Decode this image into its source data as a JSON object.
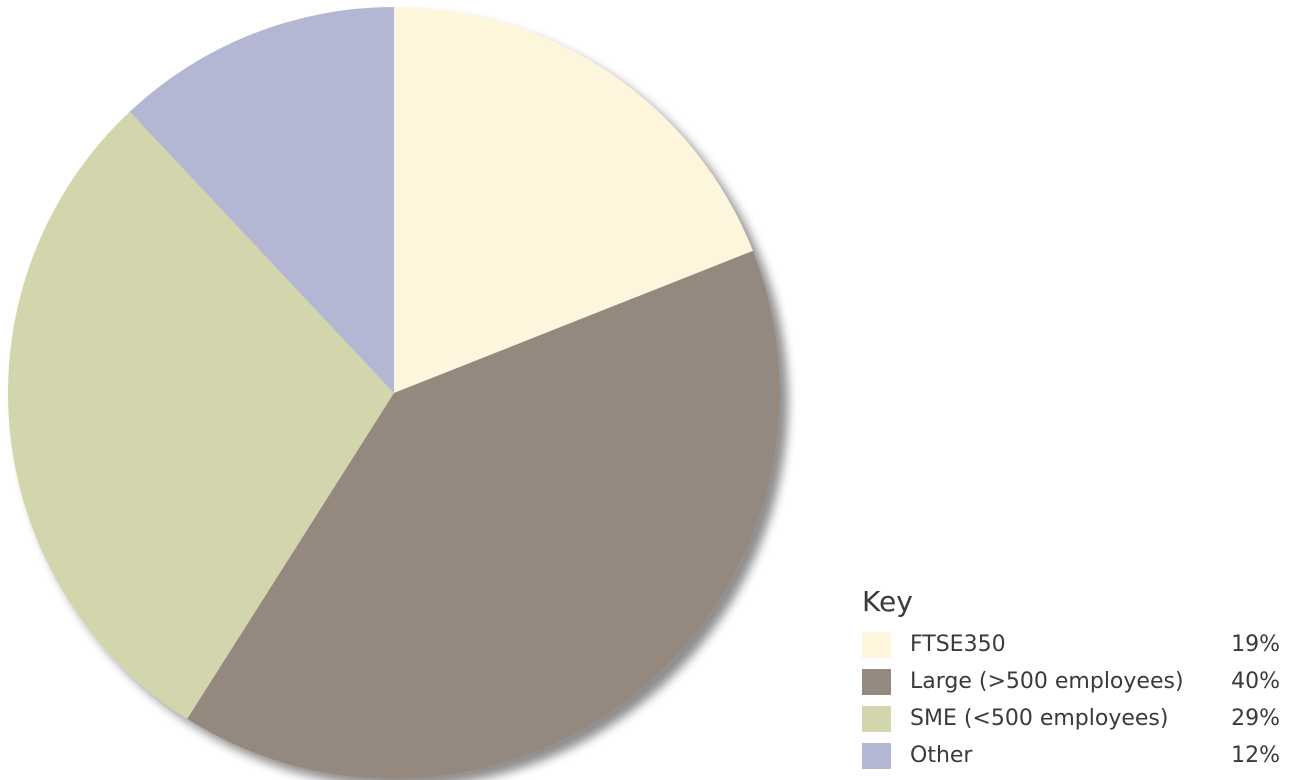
{
  "chart_data": {
    "type": "pie",
    "legend_title": "Key",
    "legend_position": "bottom-right",
    "slices": [
      {
        "label": "FTSE350",
        "value": 19,
        "display": "19%",
        "color": "#fdf6dc"
      },
      {
        "label": "Large (>500 employees)",
        "value": 40,
        "display": "40%",
        "color": "#95897f"
      },
      {
        "label": "SME (<500 employees)",
        "value": 29,
        "display": "29%",
        "color": "#d3d6ad"
      },
      {
        "label": "Other",
        "value": 12,
        "display": "12%",
        "color": "#b3b7d4"
      }
    ]
  }
}
